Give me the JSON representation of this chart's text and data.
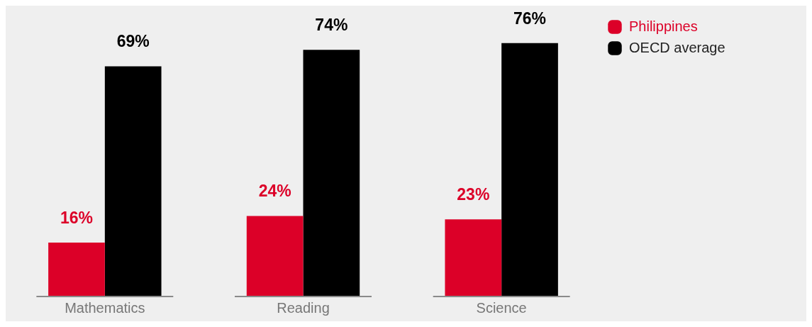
{
  "chart_data": {
    "type": "bar",
    "categories": [
      "Mathematics",
      "Reading",
      "Science"
    ],
    "series": [
      {
        "name": "Philippines",
        "color": "#dc0028",
        "values": [
          16,
          24,
          23
        ],
        "value_labels": [
          "16%",
          "24%",
          "23%"
        ]
      },
      {
        "name": "OECD average",
        "color": "#000000",
        "values": [
          69,
          74,
          76
        ],
        "value_labels": [
          "69%",
          "74%",
          "76%"
        ]
      }
    ],
    "legend": "top right",
    "grid": false
  }
}
